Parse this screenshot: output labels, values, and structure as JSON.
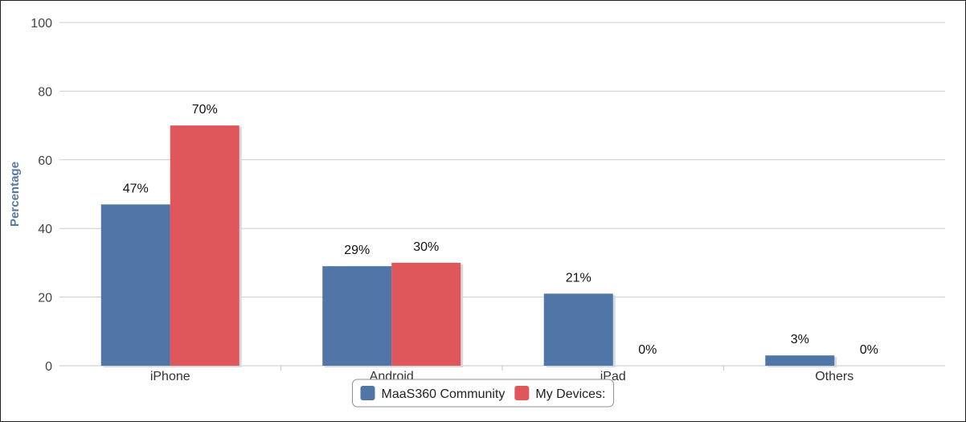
{
  "chart_data": {
    "type": "bar",
    "ylabel": "Percentage",
    "ylim": [
      0,
      100
    ],
    "yticks": [
      0,
      20,
      40,
      60,
      80,
      100
    ],
    "categories": [
      "iPhone",
      "Android",
      "iPad",
      "Others"
    ],
    "series": [
      {
        "name": "MaaS360 Community",
        "color": "#4f76a6",
        "values": [
          47,
          29,
          21,
          3
        ],
        "labels": [
          "47%",
          "29%",
          "21%",
          "3%"
        ]
      },
      {
        "name": "My Devices:",
        "color": "#e0575b",
        "values": [
          70,
          30,
          0,
          0
        ],
        "labels": [
          "70%",
          "30%",
          "0%",
          "0%"
        ]
      }
    ],
    "grid": true,
    "legend_position": "bottom-center"
  }
}
